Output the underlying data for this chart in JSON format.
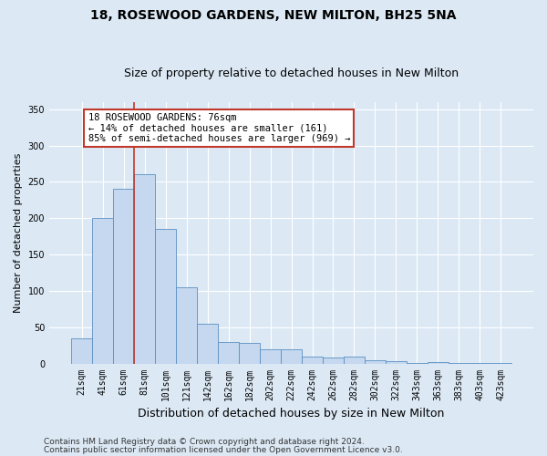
{
  "title": "18, ROSEWOOD GARDENS, NEW MILTON, BH25 5NA",
  "subtitle": "Size of property relative to detached houses in New Milton",
  "xlabel": "Distribution of detached houses by size in New Milton",
  "ylabel": "Number of detached properties",
  "categories": [
    "21sqm",
    "41sqm",
    "61sqm",
    "81sqm",
    "101sqm",
    "121sqm",
    "142sqm",
    "162sqm",
    "182sqm",
    "202sqm",
    "222sqm",
    "242sqm",
    "262sqm",
    "282sqm",
    "302sqm",
    "322sqm",
    "343sqm",
    "363sqm",
    "383sqm",
    "403sqm",
    "423sqm"
  ],
  "values": [
    35,
    200,
    240,
    260,
    185,
    105,
    55,
    30,
    28,
    20,
    20,
    10,
    8,
    9,
    5,
    3,
    1,
    2,
    1,
    1,
    1
  ],
  "bar_color": "#c5d8ef",
  "bar_edge_color": "#5a8fc3",
  "vline_color": "#c0392b",
  "vline_pos": 2.5,
  "annotation_text": "18 ROSEWOOD GARDENS: 76sqm\n← 14% of detached houses are smaller (161)\n85% of semi-detached houses are larger (969) →",
  "annotation_box_edge": "#c0392b",
  "annotation_box_face": "#ffffff",
  "ylim": [
    0,
    360
  ],
  "yticks": [
    0,
    50,
    100,
    150,
    200,
    250,
    300,
    350
  ],
  "background_color": "#dce9f5",
  "plot_bg_color": "#dce9f5",
  "footer_line1": "Contains HM Land Registry data © Crown copyright and database right 2024.",
  "footer_line2": "Contains public sector information licensed under the Open Government Licence v3.0.",
  "title_fontsize": 10,
  "subtitle_fontsize": 9,
  "xlabel_fontsize": 9,
  "ylabel_fontsize": 8,
  "tick_fontsize": 7,
  "annotation_fontsize": 7.5,
  "footer_fontsize": 6.5
}
